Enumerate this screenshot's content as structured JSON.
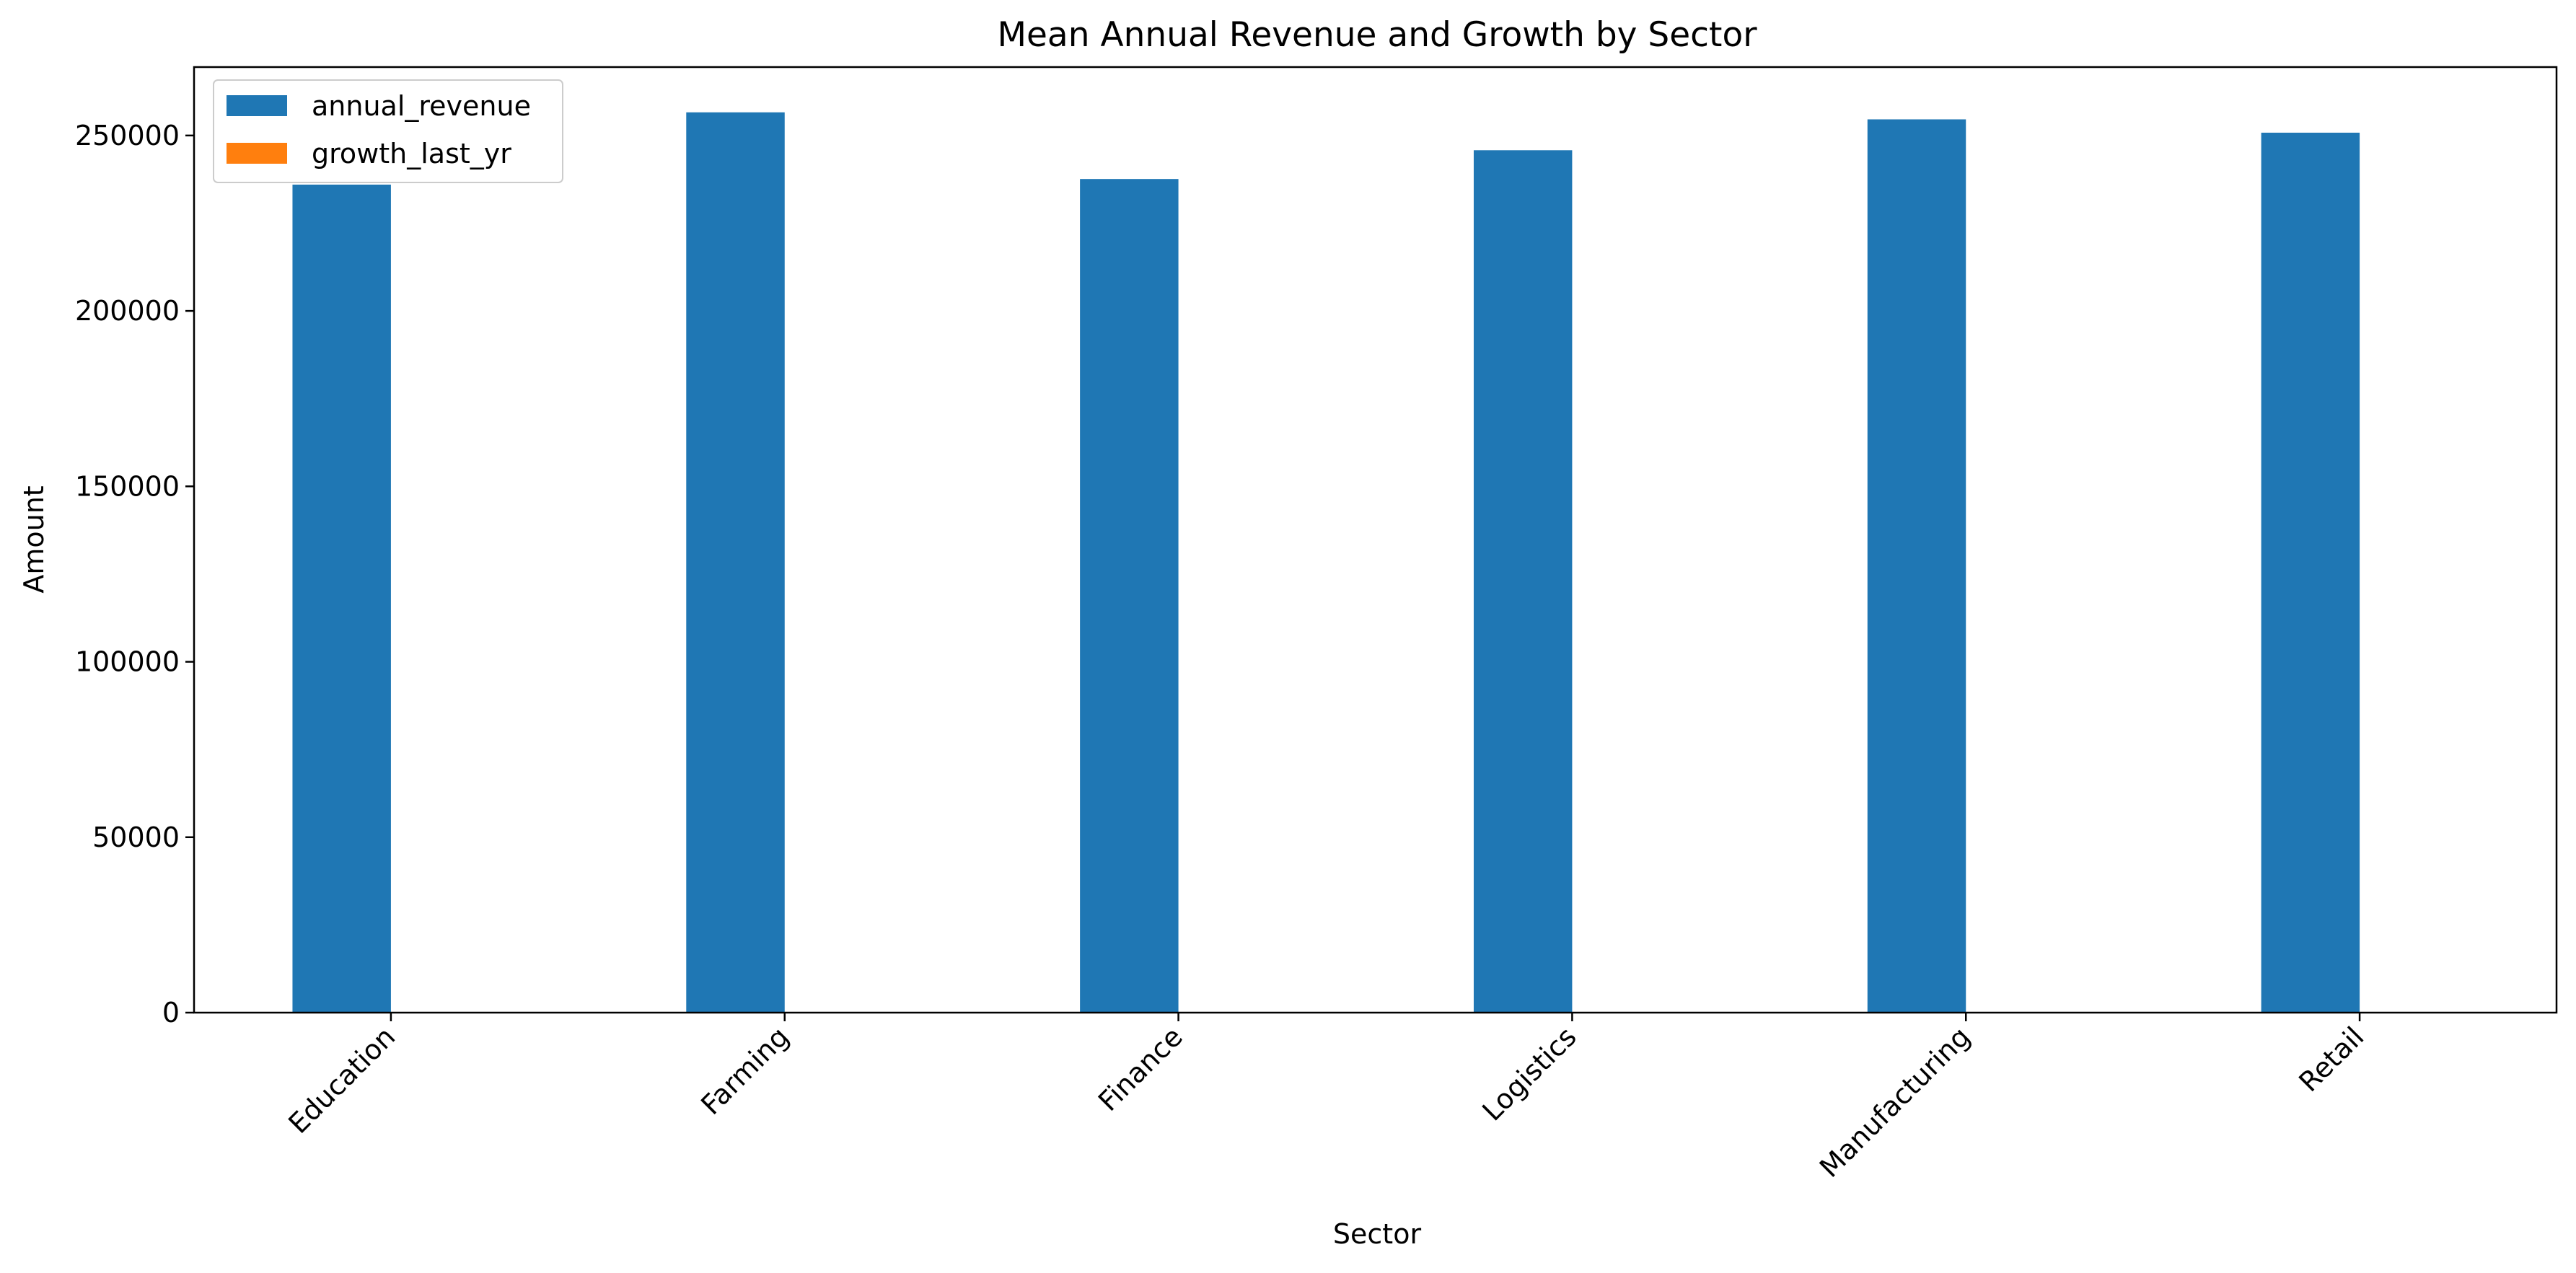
{
  "chart_data": {
    "type": "bar",
    "title": "Mean Annual Revenue and Growth by Sector",
    "xlabel": "Sector",
    "ylabel": "Amount",
    "categories": [
      "Education",
      "Farming",
      "Finance",
      "Logistics",
      "Manufacturing",
      "Retail"
    ],
    "series": [
      {
        "name": "annual_revenue",
        "color": "#1f77b4",
        "values": [
          236000,
          256600,
          237600,
          245800,
          254600,
          250800
        ]
      },
      {
        "name": "growth_last_yr",
        "color": "#ff7f0e",
        "values": [
          0.05,
          0.05,
          0.05,
          0.05,
          0.05,
          0.05
        ]
      }
    ],
    "yticks": [
      0,
      50000,
      100000,
      150000,
      200000,
      250000
    ],
    "ylim": [
      0,
      269500
    ],
    "grid": false,
    "legend_position": "top-left"
  }
}
